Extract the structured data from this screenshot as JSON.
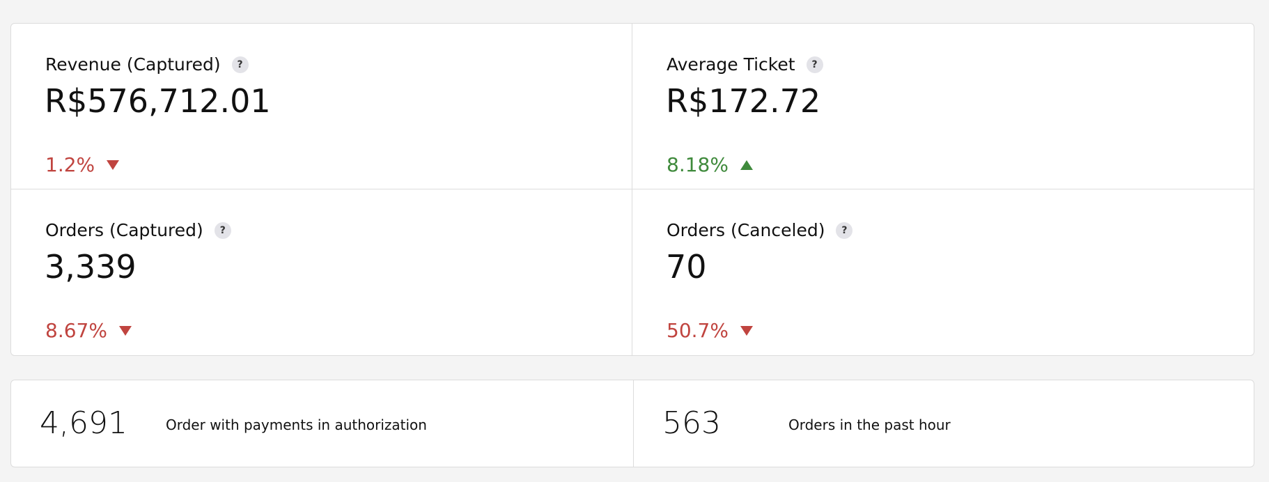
{
  "help_icon": "?",
  "metrics": [
    {
      "label": "Revenue (Captured)",
      "value": "R$576,712.01",
      "change": "1.2%",
      "direction": "down"
    },
    {
      "label": "Average Ticket",
      "value": "R$172.72",
      "change": "8.18%",
      "direction": "up"
    },
    {
      "label": "Orders (Captured)",
      "value": "3,339",
      "change": "8.67%",
      "direction": "down"
    },
    {
      "label": "Orders (Canceled)",
      "value": "70",
      "change": "50.7%",
      "direction": "down"
    }
  ],
  "stats": [
    {
      "value": "4,691",
      "label": "Order with payments in authorization"
    },
    {
      "value": "563",
      "label": "Orders in the past hour"
    }
  ]
}
